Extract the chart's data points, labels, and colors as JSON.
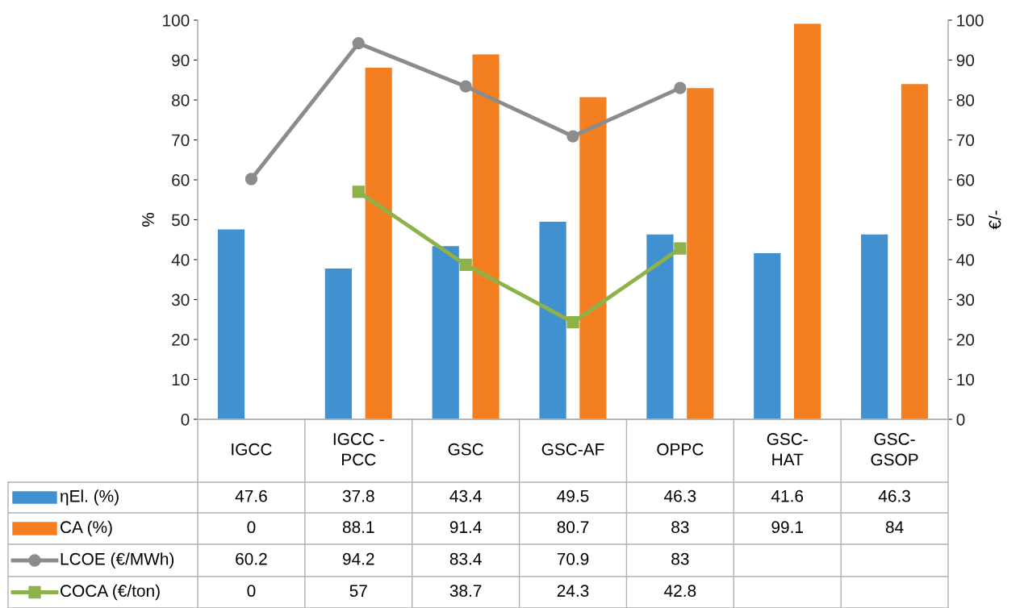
{
  "chart_data": {
    "type": "bar",
    "ylabel": "%",
    "y2label": "€/-",
    "categories": [
      "IGCC",
      "IGCC - PCC",
      "GSC",
      "GSC-AF",
      "OPPC",
      "GSC-HAT",
      "GSC-GSOP"
    ],
    "series": [
      {
        "name": "ηEl. (%)",
        "color": "#4191d0",
        "values": [
          47.6,
          37.8,
          43.4,
          49.5,
          46.3,
          41.6,
          46.3
        ]
      },
      {
        "name": "CA (%)",
        "color": "#f47f20",
        "values": [
          0,
          88.1,
          91.4,
          80.7,
          83,
          99.1,
          84
        ]
      },
      {
        "name": "LCOE (€/MWh)",
        "type": "line",
        "axis": "y2",
        "marker": "circle",
        "color": "#8c8c8c",
        "values": [
          60.2,
          94.2,
          83.4,
          70.9,
          83,
          null,
          null
        ]
      },
      {
        "name": "COCA (€/ton)",
        "type": "line",
        "axis": "y2",
        "marker": "square",
        "color": "#8db24a",
        "values": [
          null,
          57,
          38.7,
          24.3,
          42.8,
          null,
          null
        ],
        "value_labels": [
          "0",
          "57",
          "38.7",
          "24.3",
          "42.8",
          null,
          null
        ]
      }
    ],
    "ylim": [
      0,
      100
    ],
    "yticks": [
      0,
      10,
      20,
      30,
      40,
      50,
      60,
      70,
      80,
      90,
      100
    ],
    "y2lim": [
      0,
      100
    ],
    "y2ticks": [
      0,
      10,
      20,
      30,
      40,
      50,
      60,
      70,
      80,
      90,
      100
    ],
    "data_labels": true,
    "legend": "bottom",
    "grid": false
  }
}
